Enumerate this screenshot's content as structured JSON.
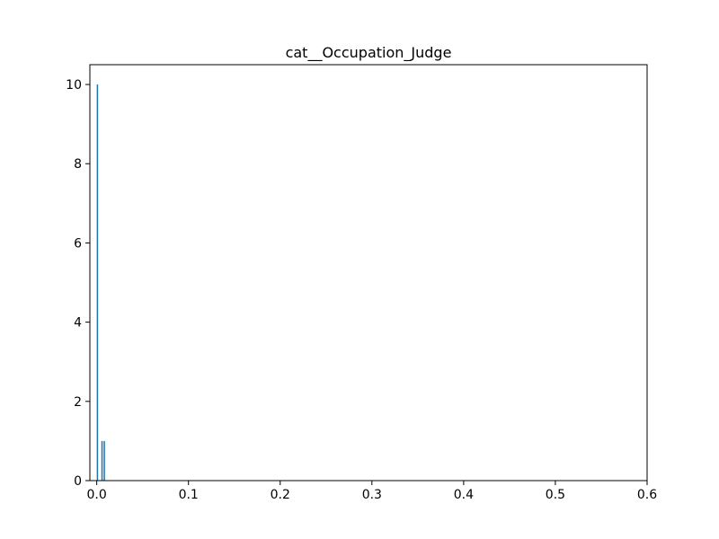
{
  "chart_data": {
    "type": "bar",
    "title": "cat__Occupation_Judge",
    "xlabel": "",
    "ylabel": "",
    "xlim": [
      -0.0075,
      0.6
    ],
    "ylim": [
      0,
      10.5
    ],
    "x_ticks": [
      {
        "value": 0.0,
        "label": "0.0"
      },
      {
        "value": 0.1,
        "label": "0.1"
      },
      {
        "value": 0.2,
        "label": "0.2"
      },
      {
        "value": 0.3,
        "label": "0.3"
      },
      {
        "value": 0.4,
        "label": "0.4"
      },
      {
        "value": 0.5,
        "label": "0.5"
      },
      {
        "value": 0.6,
        "label": "0.6"
      }
    ],
    "y_ticks": [
      {
        "value": 0,
        "label": "0"
      },
      {
        "value": 2,
        "label": "2"
      },
      {
        "value": 4,
        "label": "4"
      },
      {
        "value": 6,
        "label": "6"
      },
      {
        "value": 8,
        "label": "8"
      },
      {
        "value": 10,
        "label": "10"
      }
    ],
    "bin_width": 0.0015,
    "bins": [
      {
        "x": 0.0,
        "count": 10
      },
      {
        "x": 0.005,
        "count": 1
      },
      {
        "x": 0.0075,
        "count": 1
      }
    ],
    "grid": false,
    "bar_color": "#1f77b4"
  }
}
